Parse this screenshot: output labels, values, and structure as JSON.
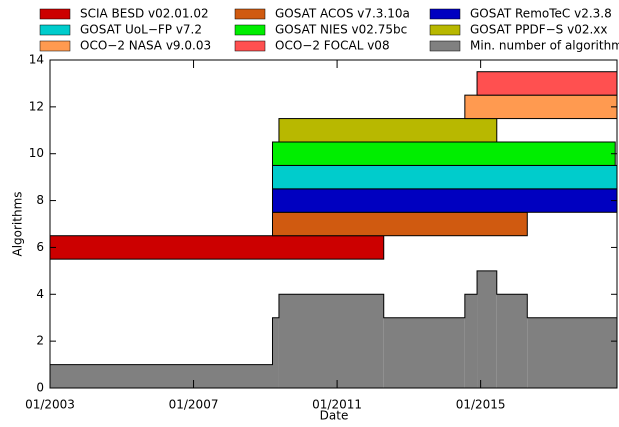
{
  "chart_data": {
    "type": "timeline",
    "x_label": "Date",
    "y_label": "Algorithms",
    "xlim": [
      2003,
      2018.8
    ],
    "xticks": [
      {
        "value": 2003,
        "label": "01/2003"
      },
      {
        "value": 2007,
        "label": "01/2007"
      },
      {
        "value": 2011,
        "label": "01/2011"
      },
      {
        "value": 2015,
        "label": "01/2015"
      }
    ],
    "ylim": [
      0,
      14
    ],
    "yticks": [
      0,
      2,
      4,
      6,
      8,
      10,
      12,
      14
    ],
    "series": [
      {
        "name": "SCIA BESD v02.01.02",
        "color": "#cc0000",
        "start": 2003,
        "end": 2012.3,
        "level": 6
      },
      {
        "name": "GOSAT ACOS v7.3.10a",
        "color": "#d05a10",
        "start": 2009.2,
        "end": 2016.3,
        "level": 7
      },
      {
        "name": "GOSAT RemoTeC v2.3.8",
        "color": "#0000c0",
        "start": 2009.2,
        "end": 2018.8,
        "level": 8
      },
      {
        "name": "GOSAT UoL−FP v7.2",
        "color": "#00cccc",
        "start": 2009.2,
        "end": 2018.8,
        "level": 9
      },
      {
        "name": "GOSAT NIES v02.75bc",
        "color": "#00ee00",
        "start": 2009.2,
        "end": 2018.75,
        "level": 10
      },
      {
        "name": "GOSAT PPDF−S v02.xx",
        "color": "#b8b800",
        "start": 2009.38,
        "end": 2015.45,
        "level": 11
      },
      {
        "name": "OCO−2 NASA v9.0.03",
        "color": "#ff9a50",
        "start": 2014.56,
        "end": 2018.8,
        "level": 12
      },
      {
        "name": "OCO−2 FOCAL v08",
        "color": "#ff5050",
        "start": 2014.9,
        "end": 2018.8,
        "level": 13
      }
    ],
    "minimum": {
      "name": "Min. number of algorithms",
      "color": "#808080",
      "bins": [
        2003,
        2009.2,
        2009.38,
        2012.3,
        2014.56,
        2014.9,
        2015.45,
        2016.3,
        2018.8
      ],
      "values": [
        1,
        3,
        4,
        3,
        4,
        5,
        4,
        3
      ]
    }
  }
}
